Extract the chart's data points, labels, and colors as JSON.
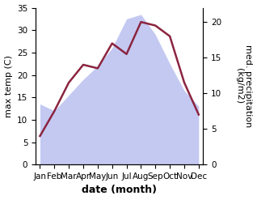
{
  "months": [
    "Jan",
    "Feb",
    "Mar",
    "Apr",
    "May",
    "Jun",
    "Jul",
    "Aug",
    "Sep",
    "Oct",
    "Nov",
    "Dec"
  ],
  "max_temp": [
    13.5,
    12.0,
    15.5,
    19.0,
    22.0,
    26.0,
    32.5,
    33.5,
    29.0,
    22.5,
    16.5,
    13.0
  ],
  "precipitation": [
    4.0,
    7.5,
    11.5,
    14.0,
    13.5,
    17.0,
    15.5,
    20.0,
    19.5,
    18.0,
    11.5,
    7.0
  ],
  "temp_ylim": [
    0,
    35
  ],
  "precip_ylim": [
    0,
    22
  ],
  "temp_yticks": [
    0,
    5,
    10,
    15,
    20,
    25,
    30,
    35
  ],
  "precip_yticks": [
    0,
    5,
    10,
    15,
    20
  ],
  "xlabel": "date (month)",
  "ylabel_left": "max temp (C)",
  "ylabel_right": "med. precipitation\n(kg/m2)",
  "fill_color": "#b0b8ee",
  "fill_alpha": 0.75,
  "line_color": "#8b2540",
  "line_width": 1.8,
  "bg_color": "#ffffff",
  "label_fontsize": 8,
  "tick_fontsize": 7.5
}
